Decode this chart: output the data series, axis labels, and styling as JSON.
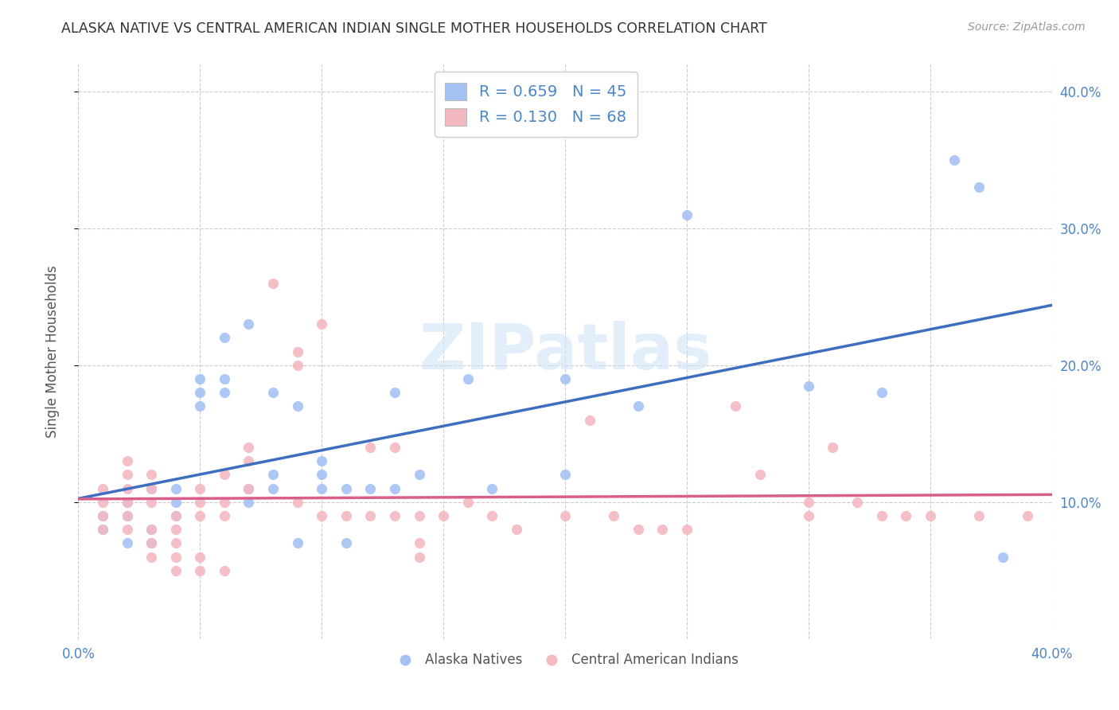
{
  "title": "ALASKA NATIVE VS CENTRAL AMERICAN INDIAN SINGLE MOTHER HOUSEHOLDS CORRELATION CHART",
  "source": "Source: ZipAtlas.com",
  "ylabel": "Single Mother Households",
  "xlim": [
    0.0,
    0.4
  ],
  "ylim": [
    0.0,
    0.42
  ],
  "yticks": [
    0.1,
    0.2,
    0.3,
    0.4
  ],
  "xticks": [
    0.0,
    0.05,
    0.1,
    0.15,
    0.2,
    0.25,
    0.3,
    0.35,
    0.4
  ],
  "blue_color": "#a4c2f4",
  "pink_color": "#f4b8c1",
  "blue_line_color": "#3d6ebf",
  "pink_line_color": "#d95f8a",
  "right_tick_color": "#4a86c8",
  "legend_text_color": "#4a86c8",
  "R_blue": 0.659,
  "N_blue": 45,
  "R_pink": 0.13,
  "N_pink": 68,
  "watermark": "ZIPatlas",
  "legend_label_blue": "Alaska Natives",
  "legend_label_pink": "Central American Indians",
  "blue_scatter": [
    [
      0.01,
      0.08
    ],
    [
      0.02,
      0.07
    ],
    [
      0.01,
      0.09
    ],
    [
      0.02,
      0.09
    ],
    [
      0.03,
      0.08
    ],
    [
      0.03,
      0.07
    ],
    [
      0.02,
      0.1
    ],
    [
      0.03,
      0.11
    ],
    [
      0.04,
      0.1
    ],
    [
      0.04,
      0.09
    ],
    [
      0.04,
      0.11
    ],
    [
      0.05,
      0.19
    ],
    [
      0.05,
      0.18
    ],
    [
      0.05,
      0.17
    ],
    [
      0.06,
      0.22
    ],
    [
      0.06,
      0.18
    ],
    [
      0.06,
      0.19
    ],
    [
      0.07,
      0.23
    ],
    [
      0.07,
      0.1
    ],
    [
      0.07,
      0.11
    ],
    [
      0.08,
      0.18
    ],
    [
      0.08,
      0.12
    ],
    [
      0.08,
      0.11
    ],
    [
      0.09,
      0.17
    ],
    [
      0.09,
      0.07
    ],
    [
      0.1,
      0.13
    ],
    [
      0.1,
      0.11
    ],
    [
      0.1,
      0.12
    ],
    [
      0.11,
      0.11
    ],
    [
      0.11,
      0.07
    ],
    [
      0.12,
      0.11
    ],
    [
      0.13,
      0.11
    ],
    [
      0.13,
      0.18
    ],
    [
      0.14,
      0.12
    ],
    [
      0.16,
      0.19
    ],
    [
      0.17,
      0.11
    ],
    [
      0.2,
      0.12
    ],
    [
      0.2,
      0.19
    ],
    [
      0.23,
      0.17
    ],
    [
      0.25,
      0.31
    ],
    [
      0.3,
      0.185
    ],
    [
      0.33,
      0.18
    ],
    [
      0.36,
      0.35
    ],
    [
      0.37,
      0.33
    ],
    [
      0.38,
      0.06
    ]
  ],
  "pink_scatter": [
    [
      0.01,
      0.09
    ],
    [
      0.01,
      0.1
    ],
    [
      0.01,
      0.11
    ],
    [
      0.01,
      0.08
    ],
    [
      0.02,
      0.12
    ],
    [
      0.02,
      0.1
    ],
    [
      0.02,
      0.09
    ],
    [
      0.02,
      0.08
    ],
    [
      0.02,
      0.11
    ],
    [
      0.02,
      0.13
    ],
    [
      0.03,
      0.12
    ],
    [
      0.03,
      0.11
    ],
    [
      0.03,
      0.1
    ],
    [
      0.03,
      0.08
    ],
    [
      0.03,
      0.07
    ],
    [
      0.03,
      0.06
    ],
    [
      0.04,
      0.09
    ],
    [
      0.04,
      0.08
    ],
    [
      0.04,
      0.07
    ],
    [
      0.04,
      0.06
    ],
    [
      0.04,
      0.05
    ],
    [
      0.05,
      0.1
    ],
    [
      0.05,
      0.09
    ],
    [
      0.05,
      0.11
    ],
    [
      0.05,
      0.06
    ],
    [
      0.05,
      0.05
    ],
    [
      0.06,
      0.12
    ],
    [
      0.06,
      0.1
    ],
    [
      0.06,
      0.09
    ],
    [
      0.06,
      0.05
    ],
    [
      0.07,
      0.14
    ],
    [
      0.07,
      0.13
    ],
    [
      0.07,
      0.11
    ],
    [
      0.08,
      0.26
    ],
    [
      0.09,
      0.21
    ],
    [
      0.09,
      0.2
    ],
    [
      0.09,
      0.1
    ],
    [
      0.1,
      0.23
    ],
    [
      0.1,
      0.09
    ],
    [
      0.11,
      0.09
    ],
    [
      0.12,
      0.14
    ],
    [
      0.12,
      0.09
    ],
    [
      0.13,
      0.14
    ],
    [
      0.13,
      0.09
    ],
    [
      0.14,
      0.09
    ],
    [
      0.14,
      0.07
    ],
    [
      0.14,
      0.06
    ],
    [
      0.15,
      0.09
    ],
    [
      0.16,
      0.1
    ],
    [
      0.17,
      0.09
    ],
    [
      0.18,
      0.08
    ],
    [
      0.2,
      0.09
    ],
    [
      0.21,
      0.16
    ],
    [
      0.22,
      0.09
    ],
    [
      0.23,
      0.08
    ],
    [
      0.24,
      0.08
    ],
    [
      0.25,
      0.08
    ],
    [
      0.27,
      0.17
    ],
    [
      0.28,
      0.12
    ],
    [
      0.3,
      0.1
    ],
    [
      0.3,
      0.09
    ],
    [
      0.31,
      0.14
    ],
    [
      0.32,
      0.1
    ],
    [
      0.33,
      0.09
    ],
    [
      0.34,
      0.09
    ],
    [
      0.35,
      0.09
    ],
    [
      0.37,
      0.09
    ],
    [
      0.39,
      0.09
    ]
  ]
}
